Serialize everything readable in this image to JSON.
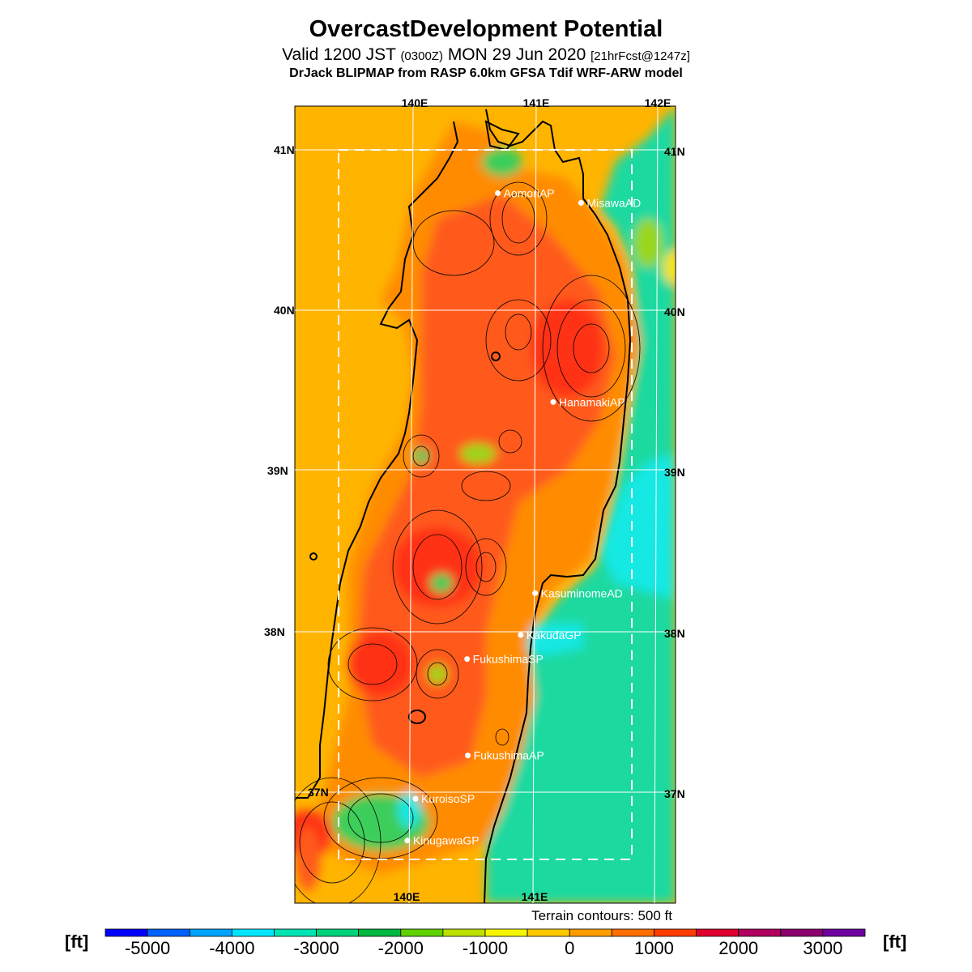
{
  "title": "OvercastDevelopment Potential",
  "subtitle": {
    "valid": "Valid 1200 JST",
    "utc": "(0300Z)",
    "date": "MON 29 Jun 2020",
    "forecast": "[21hrFcst@1247z]"
  },
  "model_line": "DrJack BLIPMAP from RASP 6.0km GFSA Tdif WRF-ARW model",
  "axes": {
    "lon_top": [
      "140E",
      "141E",
      "142E"
    ],
    "lon_bottom": [
      "140E",
      "141E"
    ],
    "lat_left": [
      "41N",
      "40N",
      "39N",
      "38N",
      "37N"
    ],
    "lat_right": [
      "41N",
      "40N",
      "39N",
      "38N",
      "37N"
    ]
  },
  "sites": [
    {
      "name": "AomoriAP",
      "lon": 140.69,
      "lat": 40.73
    },
    {
      "name": "MisawaAD",
      "lon": 141.37,
      "lat": 40.67
    },
    {
      "name": "HanamakiAP",
      "lon": 141.13,
      "lat": 39.43
    },
    {
      "name": "KasuminomeAD",
      "lon": 140.97,
      "lat": 38.24
    },
    {
      "name": "KakudaGP",
      "lon": 140.85,
      "lat": 37.98
    },
    {
      "name": "FukushimaSP",
      "lon": 140.41,
      "lat": 37.83
    },
    {
      "name": "FukushimaAP",
      "lon": 140.41,
      "lat": 37.23
    },
    {
      "name": "KuroisoSP",
      "lon": 139.98,
      "lat": 36.96
    },
    {
      "name": "KinugawaGP",
      "lon": 139.91,
      "lat": 36.7
    }
  ],
  "terrain_note": "Terrain contours: 500 ft",
  "colorbar": {
    "unit": "[ft]",
    "tick_labels": [
      "-5000",
      "-4000",
      "-3000",
      "-2000",
      "-1000",
      "0",
      "1000",
      "2000",
      "3000"
    ],
    "colors": [
      "#0000ff",
      "#0062ff",
      "#00a3ff",
      "#00e5ff",
      "#00e3b2",
      "#00d27c",
      "#00b83f",
      "#5fd100",
      "#bce000",
      "#f5f500",
      "#ffc800",
      "#ff9d00",
      "#ff6e00",
      "#ff3c00",
      "#e0002d",
      "#b1005e",
      "#8c006e",
      "#6e00a0"
    ],
    "palette": {
      "cyan": "#19e8e3",
      "seagreen": "#1fd9a0",
      "green": "#3ccd5a",
      "lime": "#9ad61f",
      "yellow": "#f3e31a",
      "amber": "#ffb400",
      "orange": "#ff8c00",
      "redorange": "#ff5a1a",
      "red": "#ff3218"
    }
  }
}
